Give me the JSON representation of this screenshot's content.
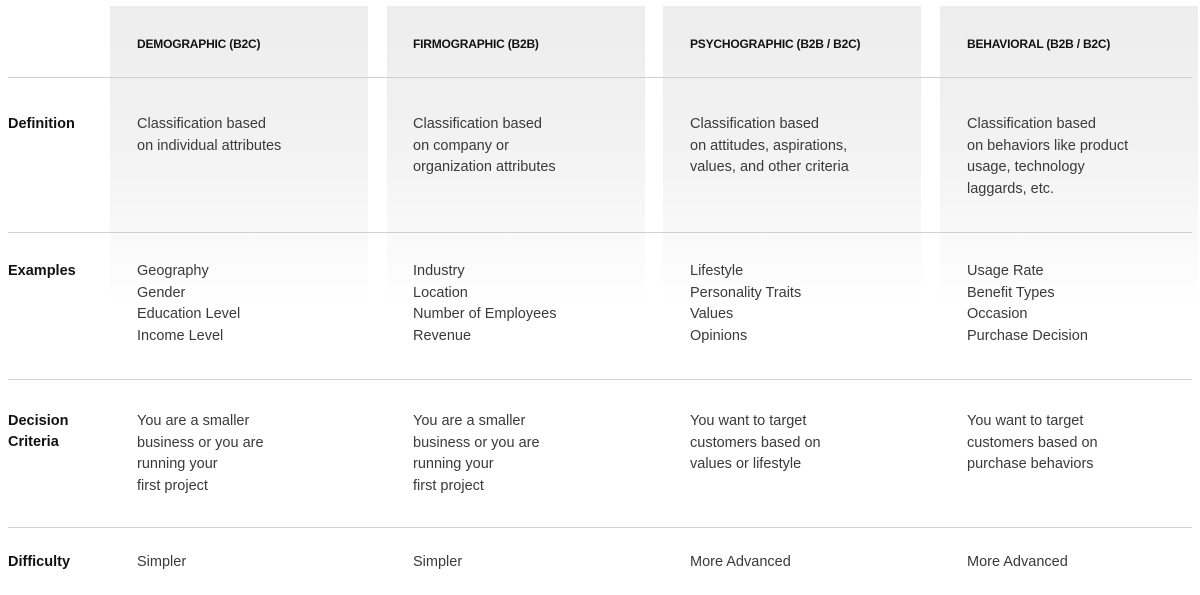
{
  "columns": [
    "DEMOGRAPHIC (B2C)",
    "FIRMOGRAPHIC (B2B)",
    "PSYCHOGRAPHIC (B2B / B2C)",
    "BEHAVIORAL (B2B / B2C)"
  ],
  "rows": [
    {
      "label": [
        "Definition"
      ],
      "cells": [
        [
          "Classification based",
          "on individual attributes"
        ],
        [
          "Classification based",
          "on company or",
          "organization attributes"
        ],
        [
          "Classification based",
          "on attitudes, aspirations,",
          "values, and other criteria"
        ],
        [
          "Classification based",
          "on behaviors like product",
          "usage, technology",
          "laggards, etc."
        ]
      ]
    },
    {
      "label": [
        "Examples"
      ],
      "cells": [
        [
          "Geography",
          "Gender",
          "Education Level",
          "Income Level"
        ],
        [
          "Industry",
          "Location",
          "Number of Employees",
          "Revenue"
        ],
        [
          "Lifestyle",
          "Personality Traits",
          "Values",
          "Opinions"
        ],
        [
          "Usage Rate",
          "Benefit Types",
          "Occasion",
          "Purchase Decision"
        ]
      ]
    },
    {
      "label": [
        "Decision",
        "Criteria"
      ],
      "cells": [
        [
          "You are a smaller",
          "business or you are",
          "running your",
          "first project"
        ],
        [
          "You are a smaller",
          "business or you are",
          "running your",
          "first project"
        ],
        [
          "You want to target",
          "customers based on",
          "values or lifestyle"
        ],
        [
          "You want to target",
          "customers based on",
          "purchase behaviors"
        ]
      ]
    },
    {
      "label": [
        "Difficulty"
      ],
      "cells": [
        [
          "Simpler"
        ],
        [
          "Simpler"
        ],
        [
          "More Advanced"
        ],
        [
          "More Advanced"
        ]
      ]
    }
  ]
}
